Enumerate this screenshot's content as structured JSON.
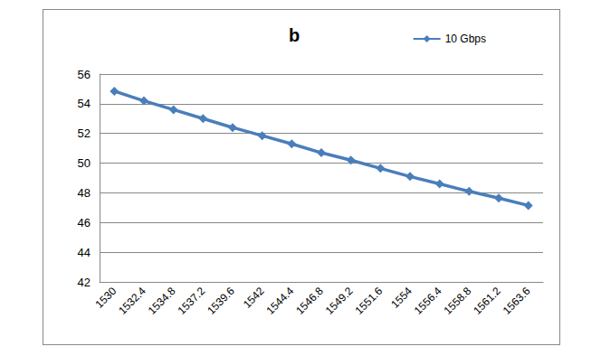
{
  "chart_data": {
    "type": "line",
    "title": "b",
    "categories": [
      "1530",
      "1532.4",
      "1534.8",
      "1537.2",
      "1539.6",
      "1542",
      "1544.4",
      "1546.8",
      "1549.2",
      "1551.6",
      "1554",
      "1556.4",
      "1558.8",
      "1561.2",
      "1563.6"
    ],
    "series": [
      {
        "name": "10 Gbps",
        "color": "#4a7ebb",
        "marker": "diamond",
        "values": [
          54.85,
          54.2,
          53.6,
          53.0,
          52.4,
          51.85,
          51.3,
          50.7,
          50.2,
          49.65,
          49.1,
          48.6,
          48.1,
          47.65,
          47.15
        ]
      }
    ],
    "ylim": [
      42,
      56
    ],
    "yticks": [
      42,
      44,
      46,
      48,
      50,
      52,
      54,
      56
    ],
    "grid": true,
    "legend": "top-right"
  }
}
